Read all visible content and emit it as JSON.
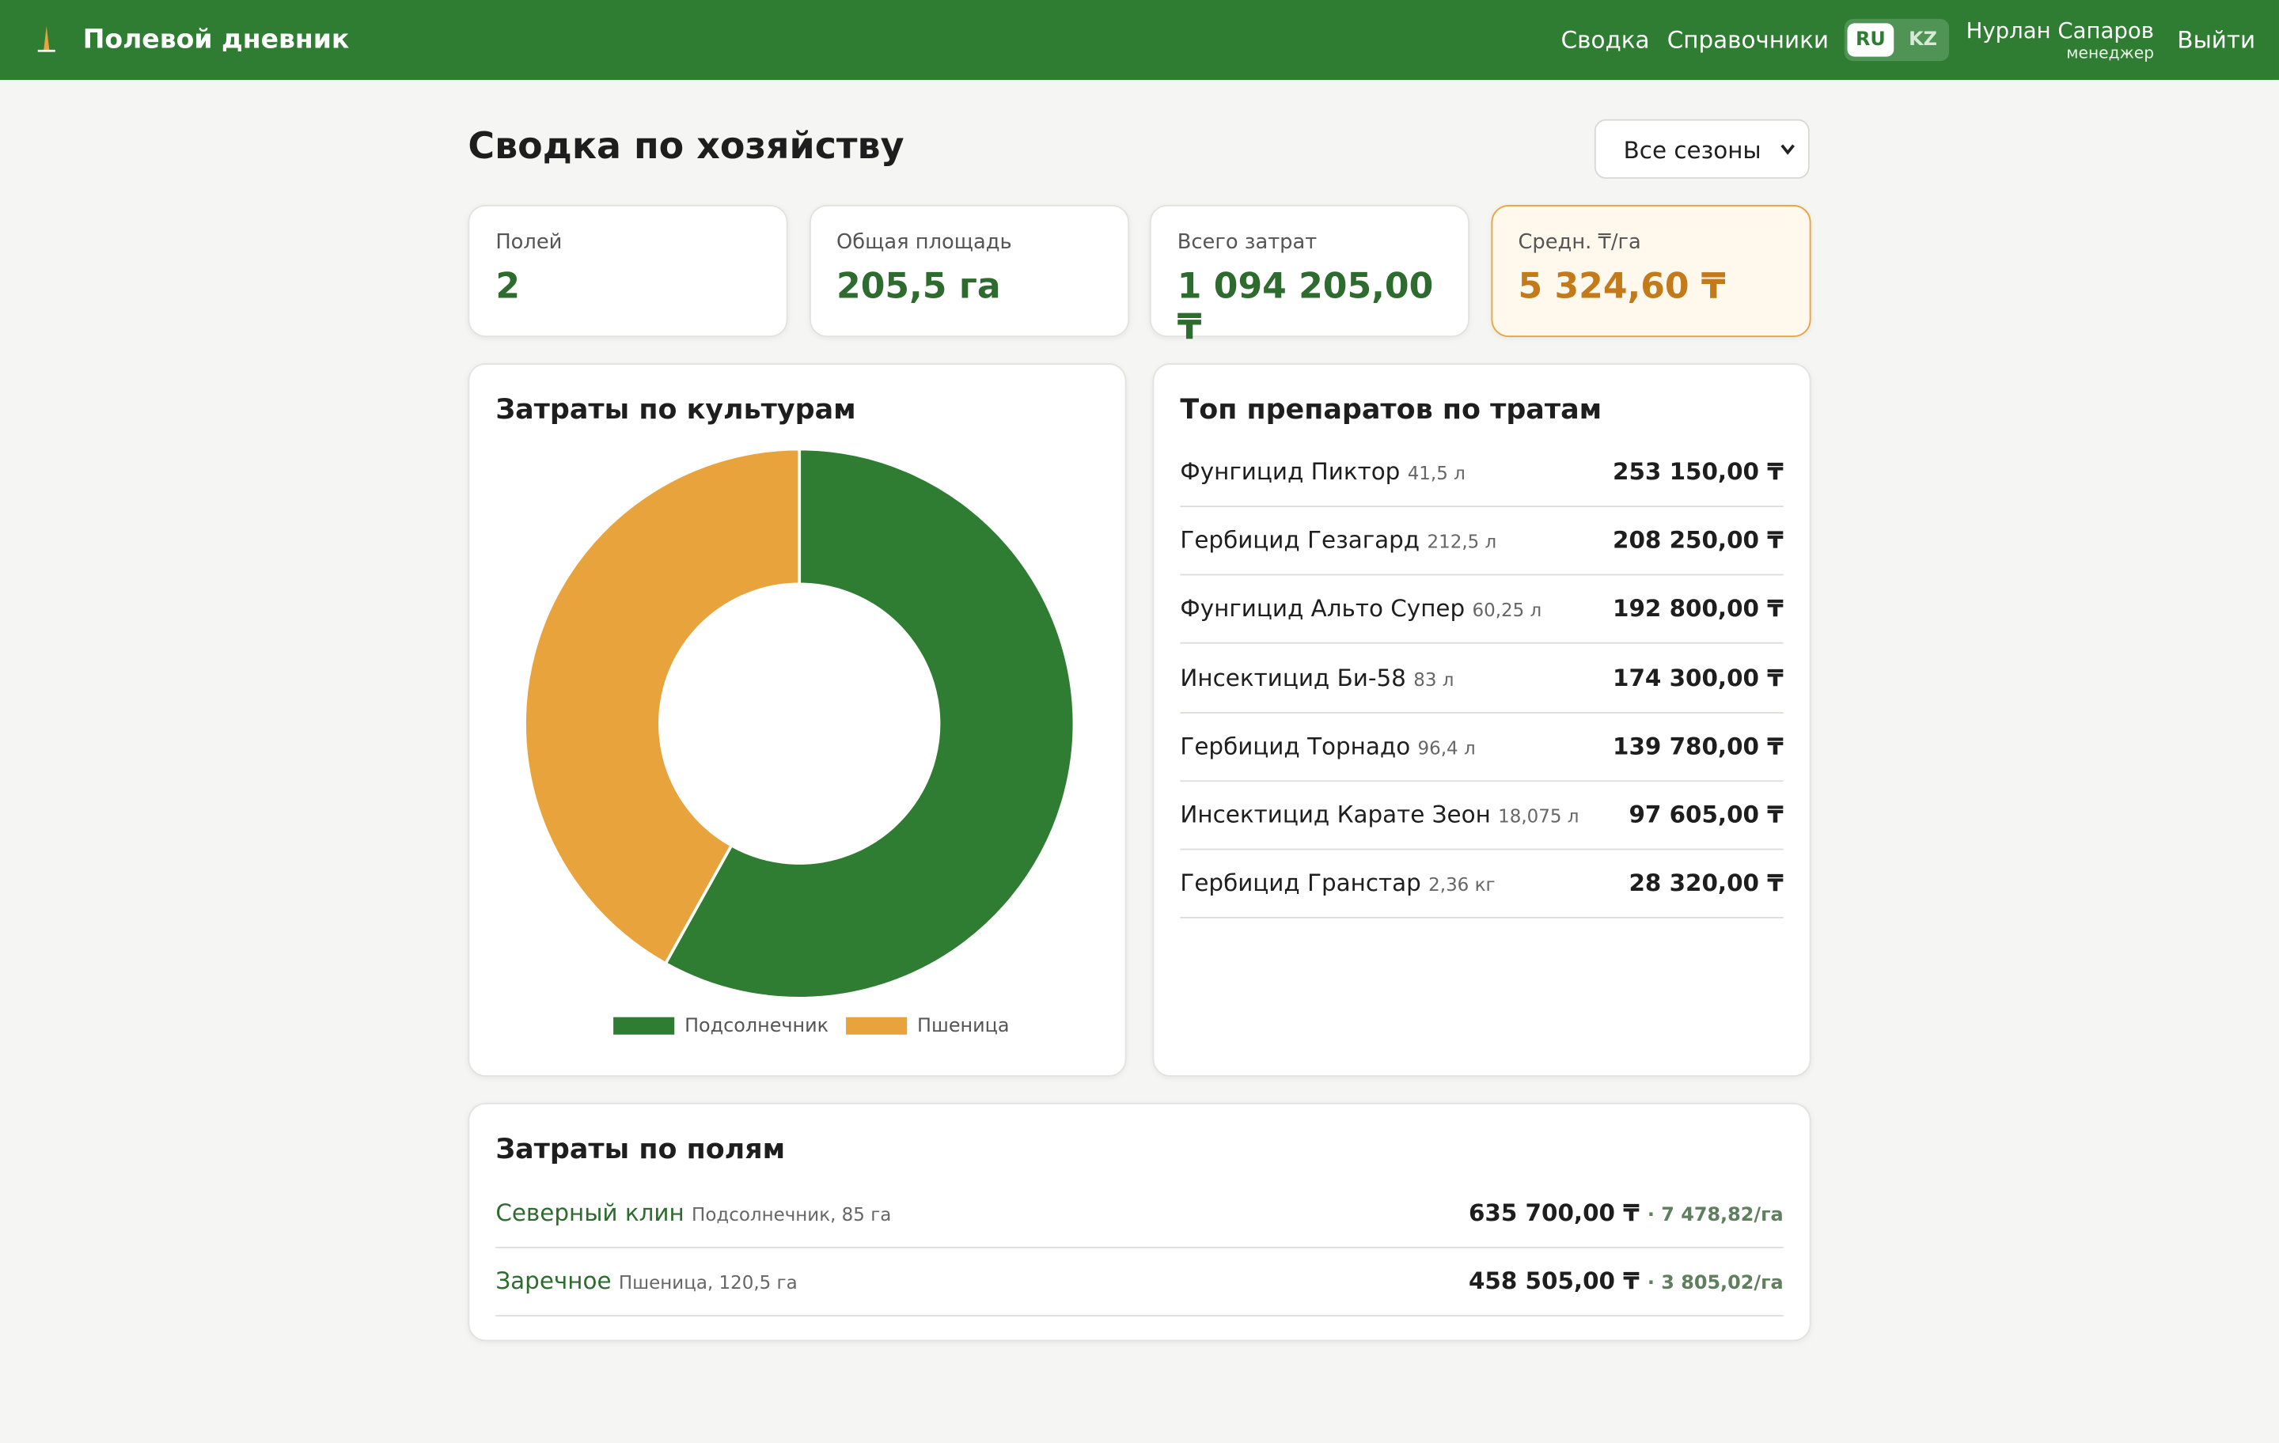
{
  "header": {
    "brand": "Полевой дневник",
    "nav": [
      "Сводка",
      "Справочники"
    ],
    "languages": [
      "RU",
      "KZ"
    ],
    "user_name": "Нурлан Сапаров",
    "user_role": "менеджер",
    "logout": "Выйти"
  },
  "page": {
    "title": "Сводка по хозяйству",
    "season_filter": "Все сезоны"
  },
  "kpis": [
    {
      "label": "Полей",
      "value": "2"
    },
    {
      "label": "Общая площадь",
      "value": "205,5 га"
    },
    {
      "label": "Всего затрат",
      "value": "1 094 205,00 ₸"
    },
    {
      "label": "Средн. ₸/га",
      "value": "5 324,60 ₸"
    }
  ],
  "chart_data": {
    "type": "pie",
    "title": "Затраты по культурам",
    "categories": [
      "Подсолнечник",
      "Пшеница"
    ],
    "values": [
      635700,
      458505
    ],
    "colors": [
      "#2e7d32",
      "#e8a33d"
    ],
    "donut": true
  },
  "top_products": {
    "title": "Топ препаратов по тратам",
    "items": [
      {
        "name": "Фунгицид Пиктор",
        "amount": "41,5 л",
        "cost": "253 150,00 ₸"
      },
      {
        "name": "Гербицид Гезагард",
        "amount": "212,5 л",
        "cost": "208 250,00 ₸"
      },
      {
        "name": "Фунгицид Альто Супер",
        "amount": "60,25 л",
        "cost": "192 800,00 ₸"
      },
      {
        "name": "Инсектицид Би-58",
        "amount": "83 л",
        "cost": "174 300,00 ₸"
      },
      {
        "name": "Гербицид Торнадо",
        "amount": "96,4 л",
        "cost": "139 780,00 ₸"
      },
      {
        "name": "Инсектицид Карате Зеон",
        "amount": "18,075 л",
        "cost": "97 605,00 ₸"
      },
      {
        "name": "Гербицид Гранстар",
        "amount": "2,36 кг",
        "cost": "28 320,00 ₸"
      }
    ]
  },
  "fields": {
    "title": "Затраты по полям",
    "items": [
      {
        "name": "Северный клин",
        "meta": "Подсолнечник, 85 га",
        "cost": "635 700,00 ₸",
        "per_ha": "· 7 478,82/га"
      },
      {
        "name": "Заречное",
        "meta": "Пшеница, 120,5 га",
        "cost": "458 505,00 ₸",
        "per_ha": "· 3 805,02/га"
      }
    ]
  }
}
